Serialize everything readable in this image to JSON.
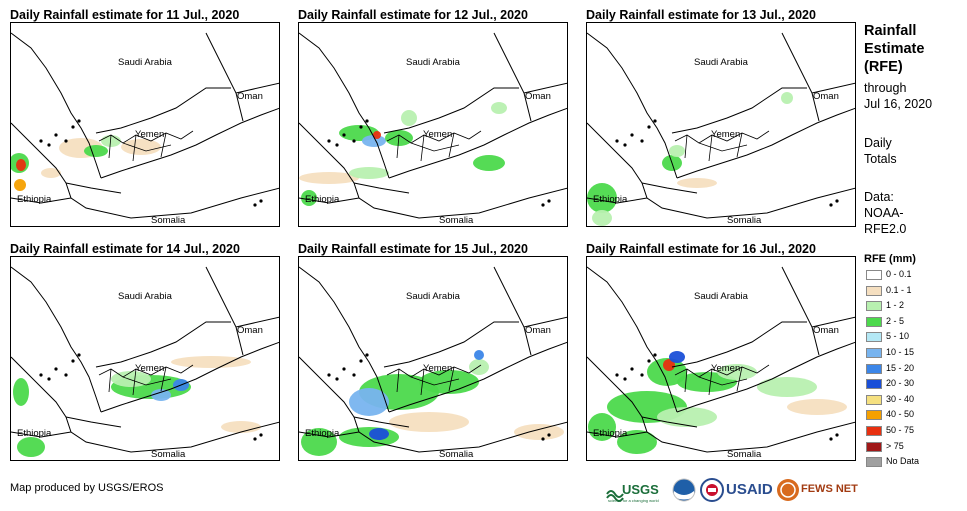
{
  "panels": [
    {
      "title": "Daily Rainfall estimate for 11 Jul., 2020",
      "day": 11
    },
    {
      "title": "Daily Rainfall estimate for 12 Jul., 2020",
      "day": 12
    },
    {
      "title": "Daily Rainfall estimate for 13 Jul., 2020",
      "day": 13
    },
    {
      "title": "Daily Rainfall estimate for 14 Jul., 2020",
      "day": 14
    },
    {
      "title": "Daily Rainfall estimate for 15 Jul., 2020",
      "day": 15
    },
    {
      "title": "Daily Rainfall estimate for 16 Jul., 2020",
      "day": 16
    }
  ],
  "countries": {
    "saudi_arabia": "Saudi Arabia",
    "oman": "Oman",
    "yemen": "Yemen",
    "ethiopia": "Ethiopia",
    "somalia": "Somalia"
  },
  "sidebar": {
    "title_line1": "Rainfall",
    "title_line2": "Estimate",
    "title_line3": "(RFE)",
    "through": "through",
    "date": "Jul 16, 2020",
    "daily": "Daily",
    "totals": "Totals",
    "data_label": "Data:",
    "source_line1": "NOAA-",
    "source_line2": "RFE2.0"
  },
  "legend": {
    "title": "RFE (mm)",
    "items": [
      {
        "label": "0 - 0.1",
        "color": "#ffffff"
      },
      {
        "label": "0.1 - 1",
        "color": "#f5dfc0"
      },
      {
        "label": "1 - 2",
        "color": "#b8f0b0"
      },
      {
        "label": "2 - 5",
        "color": "#4cd94c"
      },
      {
        "label": "5 - 10",
        "color": "#b4e8f5"
      },
      {
        "label": "10 - 15",
        "color": "#78b4ef"
      },
      {
        "label": "15 - 20",
        "color": "#3c86e8"
      },
      {
        "label": "20 - 30",
        "color": "#1a4fd8"
      },
      {
        "label": "30 - 40",
        "color": "#f5e080"
      },
      {
        "label": "40 - 50",
        "color": "#f5a000"
      },
      {
        "label": "50 - 75",
        "color": "#e83010"
      },
      {
        "label": "> 75",
        "color": "#a01818"
      },
      {
        "label": "No Data",
        "color": "#a0a0a0"
      }
    ]
  },
  "credit": "Map produced by USGS/EROS",
  "logos": {
    "usgs": "USGS",
    "usgs_tagline": "science for a changing world",
    "usaid": "USAID",
    "fewsnet": "FEWS NET"
  }
}
